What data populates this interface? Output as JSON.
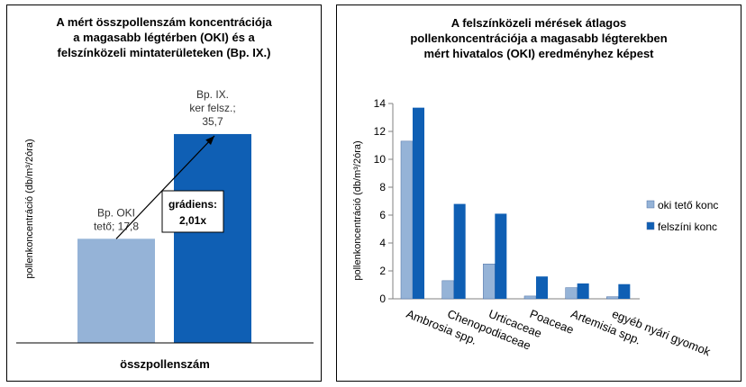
{
  "colors": {
    "light": "#95B3D7",
    "dark": "#0F5FB4",
    "axis": "#808080"
  },
  "chart_data": [
    {
      "type": "bar",
      "title": "A mért összpollenszám koncentrációja\na  magasabb légtérben (OKI) és a\nfelszínközeli mintaterületeken (Bp. IX.)",
      "ylabel": "pollenkoncentráció (db/m³/2óra)",
      "xlabel": "összpollenszám",
      "categories": [
        "összpollenszám"
      ],
      "series": [
        {
          "values": [
            17.8
          ],
          "label_lines": [
            "Bp. OKI",
            "tető; 17,8"
          ]
        },
        {
          "values": [
            35.7
          ],
          "label_lines": [
            "Bp. IX.",
            "ker felsz.;",
            "35,7"
          ]
        }
      ],
      "annotation": {
        "line1": "grádiens:",
        "line2": "2,01x"
      },
      "ylim": [
        0,
        40
      ],
      "grid": false
    },
    {
      "type": "bar",
      "title": "A felszínközeli mérések átlagos\npollenkoncentrációja a magasabb légterekben\nmért hivatalos (OKI) eredményhez képest",
      "ylabel": "pollenkoncentráció (db/m³/2óra)",
      "categories": [
        "Ambrosia spp.",
        "Chenopodiaceae",
        "Urticaceae",
        "Poaceae",
        "Artemisia spp.",
        "egyéb nyári gyomok"
      ],
      "series": [
        {
          "name": "oki tető konc",
          "values": [
            11.3,
            1.3,
            2.5,
            0.2,
            0.8,
            0.15
          ]
        },
        {
          "name": "felszíni konc",
          "values": [
            13.7,
            6.8,
            6.1,
            1.6,
            1.1,
            1.05
          ]
        }
      ],
      "yticks": [
        "0",
        "2",
        "4",
        "6",
        "8",
        "10",
        "12",
        "14"
      ],
      "ylim": [
        0,
        14
      ],
      "legend": "right",
      "grid": false
    }
  ]
}
